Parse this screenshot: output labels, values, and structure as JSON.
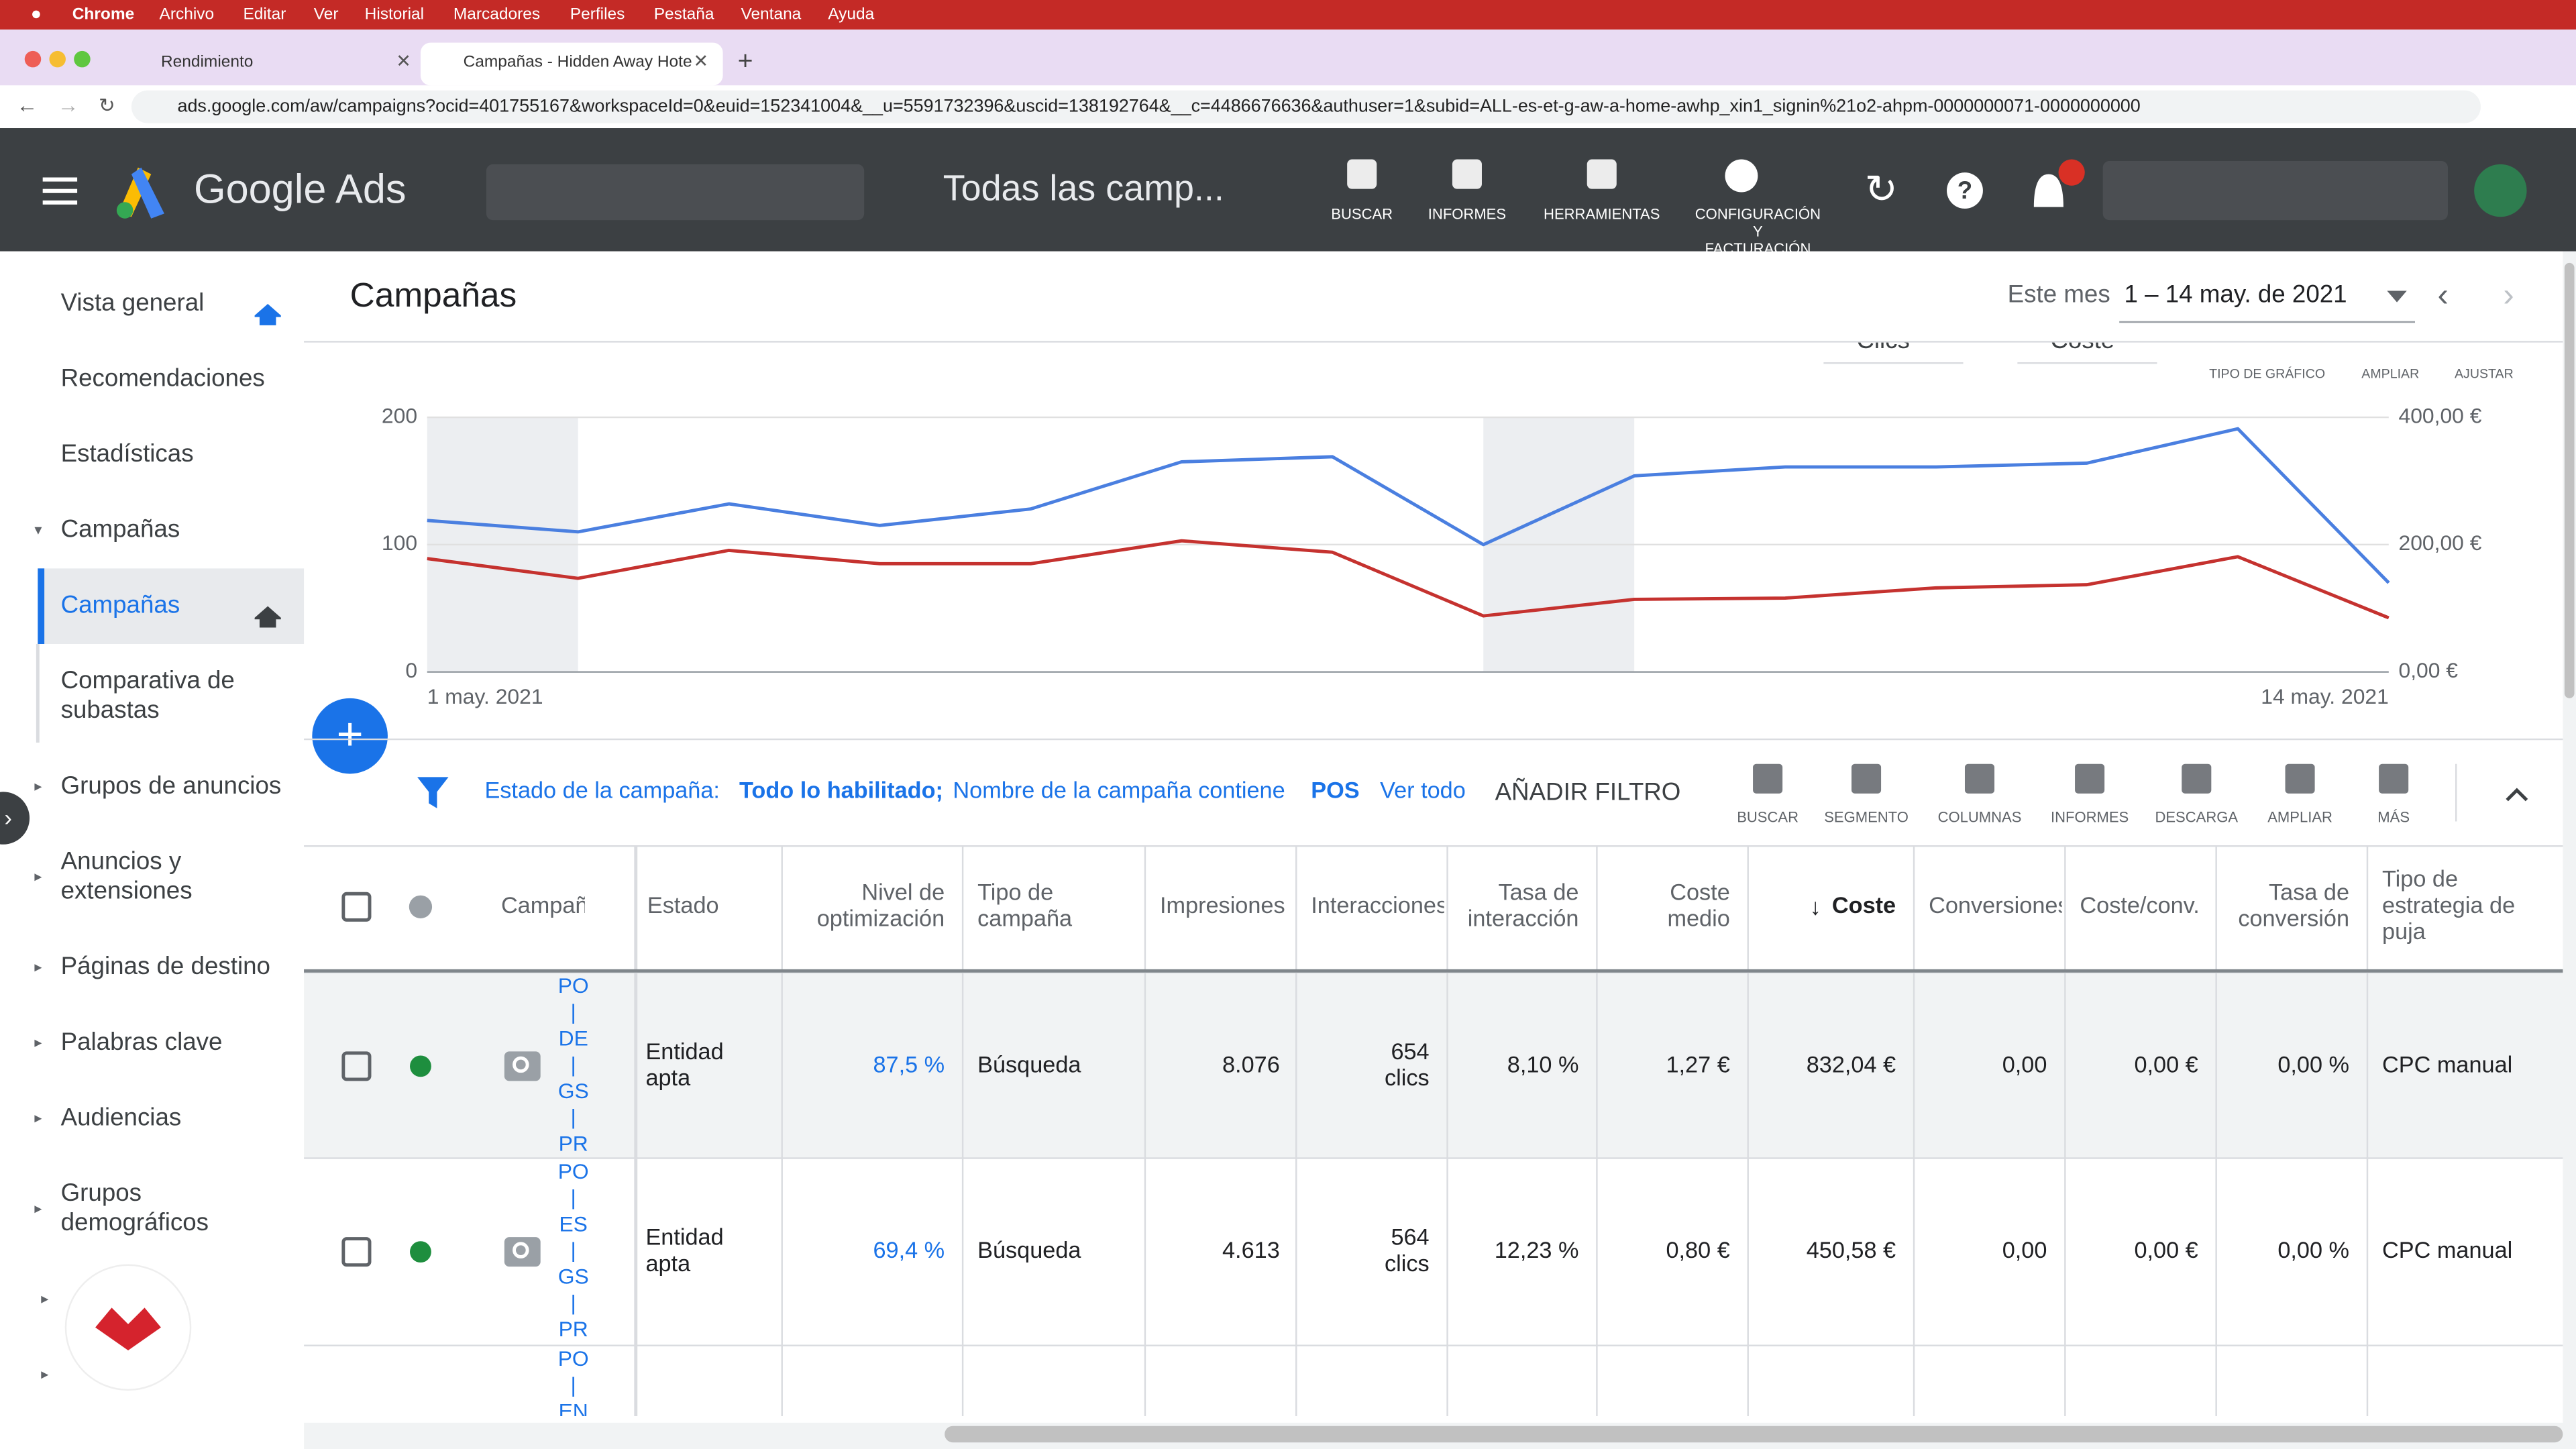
{
  "menubar": {
    "app": "Chrome",
    "items": [
      "Archivo",
      "Editar",
      "Ver",
      "Historial",
      "Marcadores",
      "Perfiles",
      "Pestaña",
      "Ventana",
      "Ayuda"
    ]
  },
  "tabs": [
    "Rendimiento",
    "Campañas - Hidden Away Hote"
  ],
  "url": "ads.google.com/aw/campaigns?ocid=401755167&workspaceId=0&euid=152341004&__u=5591732396&uscid=138192764&__c=4486676636&authuser=1&subid=ALL-es-et-g-aw-a-home-awhp_xin1_signin%21o2-ahpm-0000000071-0000000000",
  "header": {
    "product": "Google Ads",
    "page": "Todas las camp...",
    "tools": [
      "BUSCAR",
      "INFORMES",
      "HERRAMIENTAS"
    ],
    "config": [
      "CONFIGURACIÓN",
      "Y",
      "FACTURACIÓN"
    ]
  },
  "sidebar": [
    [
      "Vista general"
    ],
    [
      "Recomendaciones"
    ],
    [
      "Estadísticas"
    ],
    [
      "Campañas"
    ],
    [
      "Campañas"
    ],
    [
      "Comparativa de",
      "subastas"
    ],
    [
      "Grupos de anuncios"
    ],
    [
      "Anuncios y",
      "extensiones"
    ],
    [
      "Páginas de destino"
    ],
    [
      "Palabras clave"
    ],
    [
      "Audiencias"
    ],
    [
      "Grupos",
      "demográficos"
    ]
  ],
  "content": {
    "title": "Campañas",
    "period": "Este mes",
    "date_range": "1 – 14 may. de 2021",
    "chart_tools": [
      "TIPO DE GRÁFICO",
      "AMPLIAR",
      "AJUSTAR"
    ]
  },
  "chart_data": {
    "type": "line",
    "categories": [
      "1 may. 2021",
      null,
      null,
      null,
      null,
      null,
      null,
      null,
      null,
      null,
      null,
      null,
      null,
      "14 may. 2021"
    ],
    "series": [
      {
        "name": "Clics",
        "color": "#4a7fe0",
        "values": [
          119,
          110,
          132,
          115,
          128,
          165,
          169,
          100,
          154,
          161,
          161,
          164,
          191,
          70
        ]
      },
      {
        "name": "Coste",
        "color": "#c5322f",
        "axis": "y2",
        "values": [
          178,
          147,
          191,
          170,
          170,
          206,
          188,
          88,
          114,
          116,
          132,
          137,
          181,
          85
        ]
      }
    ],
    "ylim": [
      0,
      200
    ],
    "yticks": [
      0,
      100,
      200
    ],
    "y2lim": [
      0,
      400
    ],
    "y2ticks": [
      {
        "value": 0,
        "label": "0,00 €"
      },
      {
        "value": 200,
        "label": "200,00 €"
      },
      {
        "value": 400,
        "label": "400,00 €"
      }
    ],
    "grid": true
  },
  "filter": {
    "label": "Estado de la campaña:",
    "value": "Todo lo habilitado;",
    "label2": "Nombre de la campaña contiene",
    "value2": "POS",
    "view_all": "Ver todo",
    "add": "AÑADIR FILTRO"
  },
  "toolbar": [
    "BUSCAR",
    "SEGMENTO",
    "COLUMNAS",
    "INFORMES",
    "DESCARGA",
    "AMPLIAR",
    "MÁS"
  ],
  "table": {
    "columns": [
      [
        "Campaña"
      ],
      [
        "Estado"
      ],
      [
        "Nivel de",
        "optimización"
      ],
      [
        "Tipo de",
        "campaña"
      ],
      [
        "Impresiones"
      ],
      [
        "Interacciones"
      ],
      [
        "Tasa de",
        "interacción"
      ],
      [
        "Coste",
        "medio"
      ],
      [
        "Coste"
      ],
      [
        "Conversiones"
      ],
      [
        "Coste/conv."
      ],
      [
        "Tasa de",
        "conversión"
      ],
      [
        "Tipo de",
        "estrategia de",
        "puja"
      ]
    ],
    "rows": [
      {
        "campaign": [
          "PO",
          "|",
          "DE",
          "|",
          "GS",
          "|",
          "PR"
        ],
        "cells": [
          [
            "Entidad",
            "apta"
          ],
          [
            "87,5 %"
          ],
          [
            "Búsqueda"
          ],
          [
            "8.076"
          ],
          [
            "654",
            "clics"
          ],
          [
            "8,10 %"
          ],
          [
            "1,27 €"
          ],
          [
            "832,04 €"
          ],
          [
            "0,00"
          ],
          [
            "0,00 €"
          ],
          [
            "0,00 %"
          ],
          [
            "CPC manual"
          ]
        ]
      },
      {
        "campaign": [
          "PO",
          "|",
          "ES",
          "|",
          "GS",
          "|",
          "PR"
        ],
        "cells": [
          [
            "Entidad",
            "apta"
          ],
          [
            "69,4 %"
          ],
          [
            "Búsqueda"
          ],
          [
            "4.613"
          ],
          [
            "564",
            "clics"
          ],
          [
            "12,23 %"
          ],
          [
            "0,80 €"
          ],
          [
            "450,58 €"
          ],
          [
            "0,00"
          ],
          [
            "0,00 €"
          ],
          [
            "0,00 %"
          ],
          [
            "CPC manual"
          ]
        ]
      },
      {
        "campaign": [
          "PO",
          "|",
          "EN"
        ],
        "cells": []
      }
    ]
  }
}
